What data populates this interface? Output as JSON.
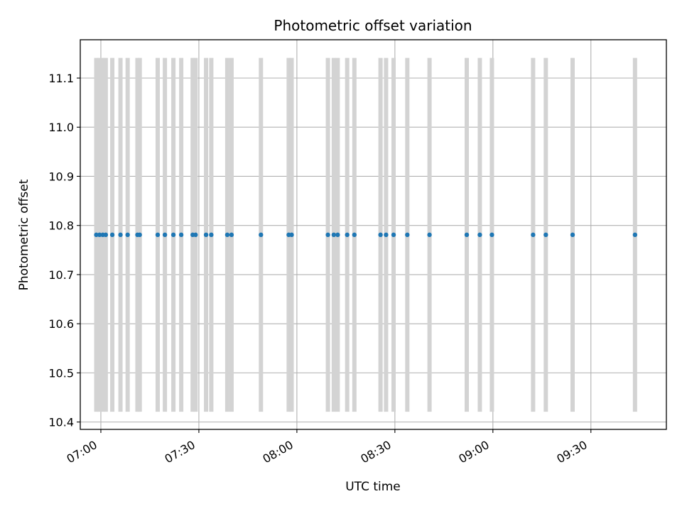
{
  "chart_data": {
    "type": "scatter",
    "title": "Photometric offset variation",
    "xlabel": "UTC time",
    "ylabel": "Photometric offset",
    "xlim_minutes": [
      6.895,
      9.885
    ],
    "ylim": [
      10.385,
      11.178
    ],
    "grid": true,
    "x_ticks": [
      {
        "minute": 420,
        "label": "07:00"
      },
      {
        "minute": 450,
        "label": "07:30"
      },
      {
        "minute": 480,
        "label": "08:00"
      },
      {
        "minute": 510,
        "label": "08:30"
      },
      {
        "minute": 540,
        "label": "09:00"
      },
      {
        "minute": 570,
        "label": "09:30"
      }
    ],
    "y_ticks": [
      {
        "value": 10.4,
        "label": "10.4"
      },
      {
        "value": 10.5,
        "label": "10.5"
      },
      {
        "value": 10.6,
        "label": "10.6"
      },
      {
        "value": 10.7,
        "label": "10.7"
      },
      {
        "value": 10.8,
        "label": "10.8"
      },
      {
        "value": 10.9,
        "label": "10.9"
      },
      {
        "value": 11.0,
        "label": "11.0"
      },
      {
        "value": 11.1,
        "label": "11.1"
      }
    ],
    "errorbar_range": [
      10.421,
      11.141
    ],
    "series": [
      {
        "name": "photometric offset",
        "color": "#1f77b4",
        "errorbar_color": "#d3d3d3",
        "minutes": [
          418.6,
          419.6,
          420.6,
          421.5,
          423.5,
          426.0,
          428.2,
          431.2,
          431.9,
          437.4,
          439.6,
          442.2,
          444.6,
          448.1,
          449.0,
          452.2,
          453.8,
          458.7,
          460.0,
          469.0,
          477.5,
          478.4,
          489.5,
          491.3,
          492.5,
          495.4,
          497.6,
          505.6,
          507.3,
          509.6,
          513.8,
          520.6,
          532.0,
          536.0,
          539.7,
          552.3,
          556.2,
          564.4,
          583.5
        ],
        "values": [
          10.781,
          10.781,
          10.781,
          10.781,
          10.781,
          10.781,
          10.781,
          10.781,
          10.781,
          10.781,
          10.781,
          10.781,
          10.781,
          10.781,
          10.781,
          10.781,
          10.781,
          10.781,
          10.781,
          10.781,
          10.781,
          10.781,
          10.781,
          10.781,
          10.781,
          10.781,
          10.781,
          10.781,
          10.781,
          10.781,
          10.781,
          10.781,
          10.781,
          10.781,
          10.781,
          10.781,
          10.781,
          10.781,
          10.781
        ]
      }
    ]
  }
}
